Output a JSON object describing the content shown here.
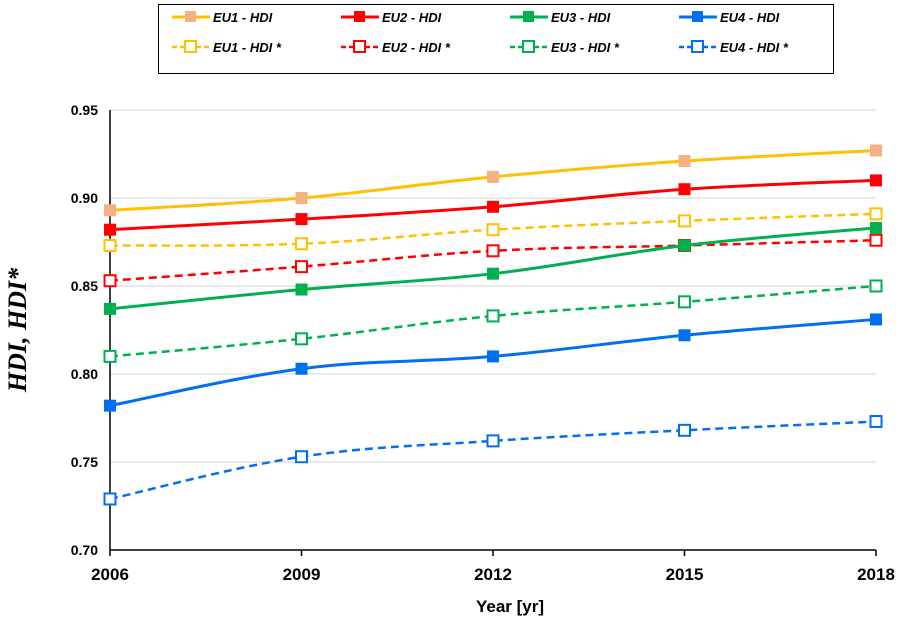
{
  "chart_data": {
    "type": "line",
    "xlabel": "Year [yr]",
    "ylabel": "HDI,   HDI*",
    "categories": [
      "2006",
      "2009",
      "2012",
      "2015",
      "2018"
    ],
    "x": [
      2006,
      2009,
      2012,
      2015,
      2018
    ],
    "ylim": [
      0.7,
      0.95
    ],
    "yticks": [
      "0.70",
      "0.75",
      "0.80",
      "0.85",
      "0.90",
      "0.95"
    ],
    "grid": "horizontal",
    "legend_position": "top",
    "series": [
      {
        "name": "EU1 - HDI",
        "color": "#FFC000",
        "marker_color": "#F4B183",
        "marker": "filled-square",
        "style": "solid",
        "values": [
          0.893,
          0.9,
          0.912,
          0.921,
          0.927
        ]
      },
      {
        "name": "EU2 - HDI",
        "color": "#FF0000",
        "marker_color": "#FF0000",
        "marker": "filled-square",
        "style": "solid",
        "values": [
          0.882,
          0.888,
          0.895,
          0.905,
          0.91
        ]
      },
      {
        "name": "EU3 - HDI",
        "color": "#00B050",
        "marker_color": "#00B050",
        "marker": "filled-square",
        "style": "solid",
        "values": [
          0.837,
          0.848,
          0.857,
          0.873,
          0.883
        ]
      },
      {
        "name": "EU4 - HDI",
        "color": "#0070F0",
        "marker_color": "#0070F0",
        "marker": "filled-square",
        "style": "solid",
        "values": [
          0.782,
          0.803,
          0.81,
          0.822,
          0.831
        ]
      },
      {
        "name": "EU1 - HDI *",
        "color": "#FFC000",
        "marker_color": "#FFC000",
        "marker": "open-square",
        "style": "dashed",
        "values": [
          0.873,
          0.874,
          0.882,
          0.887,
          0.891
        ]
      },
      {
        "name": "EU2 - HDI *",
        "color": "#FF0000",
        "marker_color": "#FF0000",
        "marker": "open-square",
        "style": "dashed",
        "values": [
          0.853,
          0.861,
          0.87,
          0.873,
          0.876
        ]
      },
      {
        "name": "EU3 - HDI *",
        "color": "#00B050",
        "marker_color": "#00B050",
        "marker": "open-square",
        "style": "dashed",
        "values": [
          0.81,
          0.82,
          0.833,
          0.841,
          0.85
        ]
      },
      {
        "name": "EU4 - HDI *",
        "color": "#0070F0",
        "marker_color": "#0070F0",
        "marker": "open-square",
        "style": "dashed",
        "values": [
          0.729,
          0.753,
          0.762,
          0.768,
          0.773
        ]
      }
    ]
  }
}
